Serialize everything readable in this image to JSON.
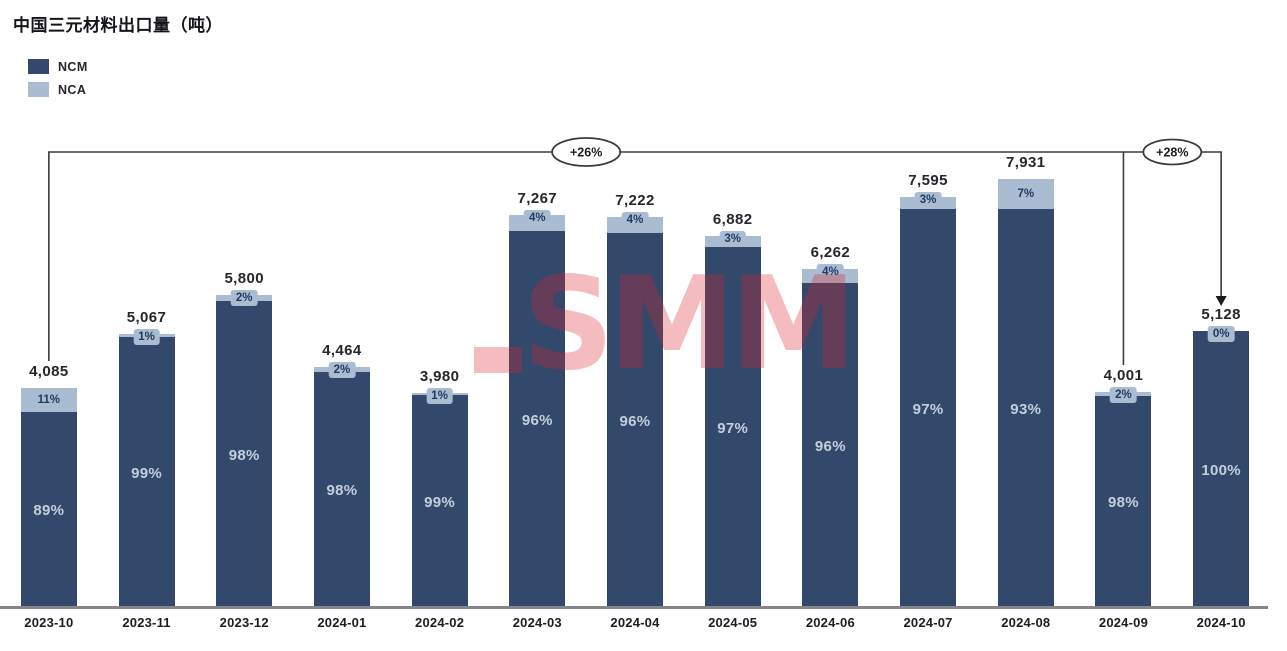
{
  "title": "中国三元材料出口量（吨）",
  "watermark": "SMM",
  "legend": {
    "items": [
      {
        "label": "NCM"
      },
      {
        "label": "NCA"
      }
    ]
  },
  "colors": {
    "ncm": "#32496b",
    "nca": "#a9bcd2",
    "chip_text": "#1f3a5e",
    "inside_label": "#c3cfdd",
    "total_label": "#26262c",
    "axis": "#85858c",
    "annotation_line": "#3b3b40",
    "watermark": "rgba(222,34,48,0.30)"
  },
  "chart_data": {
    "type": "bar",
    "stacked": true,
    "unit": "吨",
    "title": "中国三元材料出口量（吨）",
    "categories": [
      "2023-10",
      "2023-11",
      "2023-12",
      "2024-01",
      "2024-02",
      "2024-03",
      "2024-04",
      "2024-05",
      "2024-06",
      "2024-07",
      "2024-08",
      "2024-09",
      "2024-10"
    ],
    "totals": [
      4085,
      5067,
      5800,
      4464,
      3980,
      7267,
      7222,
      6882,
      6262,
      7595,
      7931,
      4001,
      5128
    ],
    "total_labels": [
      "4,085",
      "5,067",
      "5,800",
      "4,464",
      "3,980",
      "7,267",
      "7,222",
      "6,882",
      "6,262",
      "7,595",
      "7,931",
      "4,001",
      "5,128"
    ],
    "series": [
      {
        "name": "NCM",
        "unit": "%",
        "values": [
          89,
          99,
          98,
          98,
          99,
          96,
          96,
          97,
          96,
          97,
          93,
          98,
          100
        ]
      },
      {
        "name": "NCA",
        "unit": "%",
        "values": [
          11,
          1,
          2,
          2,
          1,
          4,
          4,
          3,
          4,
          3,
          7,
          2,
          0
        ]
      }
    ],
    "annotations": [
      {
        "label": "+26%",
        "from": "2023-10",
        "to": "2024-10"
      },
      {
        "label": "+28%",
        "from": "2024-09",
        "to": "2024-10"
      }
    ],
    "ylim": [
      0,
      8400
    ],
    "grid": false,
    "legend_position": "top-left"
  }
}
